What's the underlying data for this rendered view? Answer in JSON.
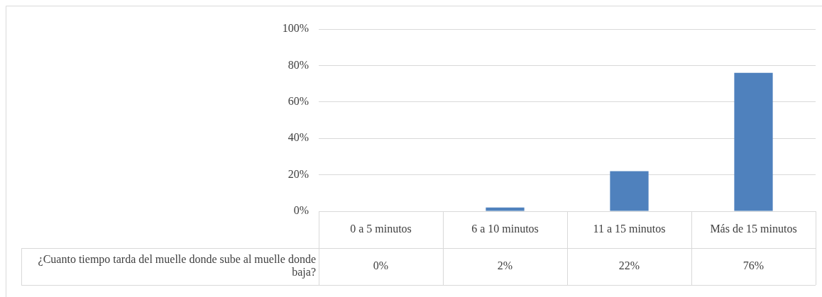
{
  "chart_data": {
    "type": "bar",
    "categories": [
      "0 a 5 minutos",
      "6 a 10 minutos",
      "11 a 15 minutos",
      "Más de 15 minutos"
    ],
    "series": [
      {
        "name": "¿Cuanto tiempo tarda del muelle donde sube al muelle donde baja?",
        "color": "#4f81bd",
        "values": [
          0,
          2,
          22,
          76
        ],
        "value_labels": [
          "0%",
          "2%",
          "22%",
          "76%"
        ]
      }
    ],
    "ylim": [
      0,
      100
    ],
    "yticks": [
      {
        "value": 0,
        "label": "0%"
      },
      {
        "value": 20,
        "label": "20%"
      },
      {
        "value": 40,
        "label": "40%"
      },
      {
        "value": 60,
        "label": "60%"
      },
      {
        "value": 80,
        "label": "80%"
      },
      {
        "value": 100,
        "label": "100%"
      }
    ],
    "grid": "y",
    "legend": false
  }
}
